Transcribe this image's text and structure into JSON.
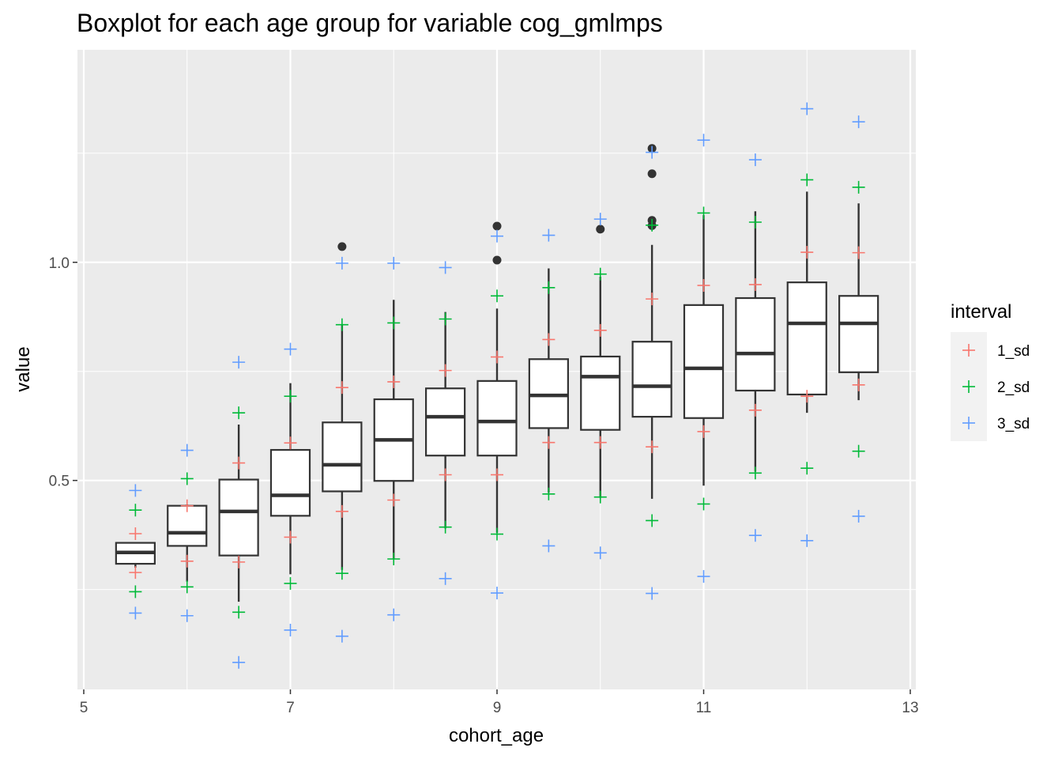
{
  "chart_data": {
    "type": "boxplot",
    "title": "Boxplot for each age group for variable cog_gmlmps",
    "xlabel": "cohort_age",
    "ylabel": "value",
    "xlim": [
      5,
      13
    ],
    "ylim": [
      0.05,
      1.42
    ],
    "x_ticks": [
      5,
      7,
      9,
      11,
      13
    ],
    "y_ticks": [
      0.5,
      1.0
    ],
    "y_tick_labels": [
      "0.5",
      "1.0"
    ],
    "grid": true,
    "legend": {
      "title": "interval",
      "placement": "right",
      "entries": [
        {
          "label": "1_sd",
          "color": "#f8766d"
        },
        {
          "label": "2_sd",
          "color": "#00ba38"
        },
        {
          "label": "3_sd",
          "color": "#619cff"
        }
      ]
    },
    "boxes": [
      {
        "x": 5.5,
        "whisker_low": 0.3,
        "q1": 0.309,
        "median": 0.335,
        "q3": 0.357,
        "whisker_high": 0.358,
        "outliers": []
      },
      {
        "x": 6.0,
        "whisker_low": 0.268,
        "q1": 0.35,
        "median": 0.38,
        "q3": 0.442,
        "whisker_high": 0.445,
        "outliers": []
      },
      {
        "x": 6.5,
        "whisker_low": 0.222,
        "q1": 0.328,
        "median": 0.429,
        "q3": 0.502,
        "whisker_high": 0.628,
        "outliers": []
      },
      {
        "x": 7.0,
        "whisker_low": 0.285,
        "q1": 0.419,
        "median": 0.466,
        "q3": 0.57,
        "whisker_high": 0.723,
        "outliers": []
      },
      {
        "x": 7.5,
        "whisker_low": 0.295,
        "q1": 0.475,
        "median": 0.536,
        "q3": 0.633,
        "whisker_high": 0.857,
        "outliers": [
          1.036
        ]
      },
      {
        "x": 8.0,
        "whisker_low": 0.32,
        "q1": 0.499,
        "median": 0.593,
        "q3": 0.686,
        "whisker_high": 0.914,
        "outliers": []
      },
      {
        "x": 8.5,
        "whisker_low": 0.39,
        "q1": 0.557,
        "median": 0.646,
        "q3": 0.711,
        "whisker_high": 0.886,
        "outliers": []
      },
      {
        "x": 9.0,
        "whisker_low": 0.38,
        "q1": 0.557,
        "median": 0.635,
        "q3": 0.728,
        "whisker_high": 0.894,
        "outliers": [
          1.005,
          1.083
        ]
      },
      {
        "x": 9.5,
        "whisker_low": 0.472,
        "q1": 0.62,
        "median": 0.695,
        "q3": 0.778,
        "whisker_high": 0.986,
        "outliers": []
      },
      {
        "x": 10.0,
        "whisker_low": 0.46,
        "q1": 0.616,
        "median": 0.738,
        "q3": 0.784,
        "whisker_high": 0.967,
        "outliers": [
          1.076
        ]
      },
      {
        "x": 10.5,
        "whisker_low": 0.458,
        "q1": 0.646,
        "median": 0.716,
        "q3": 0.818,
        "whisker_high": 1.04,
        "outliers": [
          1.084,
          1.096,
          1.203,
          1.261
        ]
      },
      {
        "x": 11.0,
        "whisker_low": 0.488,
        "q1": 0.643,
        "median": 0.757,
        "q3": 0.902,
        "whisker_high": 1.108,
        "outliers": []
      },
      {
        "x": 11.5,
        "whisker_low": 0.52,
        "q1": 0.706,
        "median": 0.791,
        "q3": 0.918,
        "whisker_high": 1.117,
        "outliers": []
      },
      {
        "x": 12.0,
        "whisker_low": 0.655,
        "q1": 0.697,
        "median": 0.86,
        "q3": 0.954,
        "whisker_high": 1.162,
        "outliers": []
      },
      {
        "x": 12.5,
        "whisker_low": 0.684,
        "q1": 0.748,
        "median": 0.86,
        "q3": 0.923,
        "whisker_high": 1.135,
        "outliers": []
      }
    ],
    "intervals": [
      {
        "x": 5.5,
        "sd1": [
          0.289,
          0.378
        ],
        "sd2": [
          0.245,
          0.432
        ],
        "sd3": [
          0.196,
          0.477
        ]
      },
      {
        "x": 6.0,
        "sd1": [
          0.315,
          0.442
        ],
        "sd2": [
          0.256,
          0.504
        ],
        "sd3": [
          0.19,
          0.569
        ]
      },
      {
        "x": 6.5,
        "sd1": [
          0.313,
          0.54
        ],
        "sd2": [
          0.198,
          0.655
        ],
        "sd3": [
          0.083,
          0.771
        ]
      },
      {
        "x": 7.0,
        "sd1": [
          0.37,
          0.586
        ],
        "sd2": [
          0.264,
          0.693
        ],
        "sd3": [
          0.157,
          0.801
        ]
      },
      {
        "x": 7.5,
        "sd1": [
          0.429,
          0.713
        ],
        "sd2": [
          0.287,
          0.857
        ],
        "sd3": [
          0.143,
          0.998
        ]
      },
      {
        "x": 8.0,
        "sd1": [
          0.455,
          0.726
        ],
        "sd2": [
          0.32,
          0.861
        ],
        "sd3": [
          0.192,
          0.998
        ]
      },
      {
        "x": 8.5,
        "sd1": [
          0.513,
          0.752
        ],
        "sd2": [
          0.393,
          0.87
        ],
        "sd3": [
          0.275,
          0.988
        ]
      },
      {
        "x": 9.0,
        "sd1": [
          0.513,
          0.783
        ],
        "sd2": [
          0.377,
          0.923
        ],
        "sd3": [
          0.242,
          1.06
        ]
      },
      {
        "x": 9.5,
        "sd1": [
          0.587,
          0.823
        ],
        "sd2": [
          0.469,
          0.942
        ],
        "sd3": [
          0.35,
          1.062
        ]
      },
      {
        "x": 10.0,
        "sd1": [
          0.587,
          0.844
        ],
        "sd2": [
          0.462,
          0.973
        ],
        "sd3": [
          0.334,
          1.099
        ]
      },
      {
        "x": 10.5,
        "sd1": [
          0.577,
          0.916
        ],
        "sd2": [
          0.408,
          1.085
        ],
        "sd3": [
          0.241,
          1.252
        ]
      },
      {
        "x": 11.0,
        "sd1": [
          0.612,
          0.947
        ],
        "sd2": [
          0.446,
          1.113
        ],
        "sd3": [
          0.28,
          1.28
        ]
      },
      {
        "x": 11.5,
        "sd1": [
          0.661,
          0.949
        ],
        "sd2": [
          0.517,
          1.092
        ],
        "sd3": [
          0.374,
          1.235
        ]
      },
      {
        "x": 12.0,
        "sd1": [
          0.693,
          1.023
        ],
        "sd2": [
          0.528,
          1.189
        ],
        "sd3": [
          0.362,
          1.352
        ]
      },
      {
        "x": 12.5,
        "sd1": [
          0.719,
          1.022
        ],
        "sd2": [
          0.567,
          1.172
        ],
        "sd3": [
          0.418,
          1.322
        ]
      }
    ]
  }
}
